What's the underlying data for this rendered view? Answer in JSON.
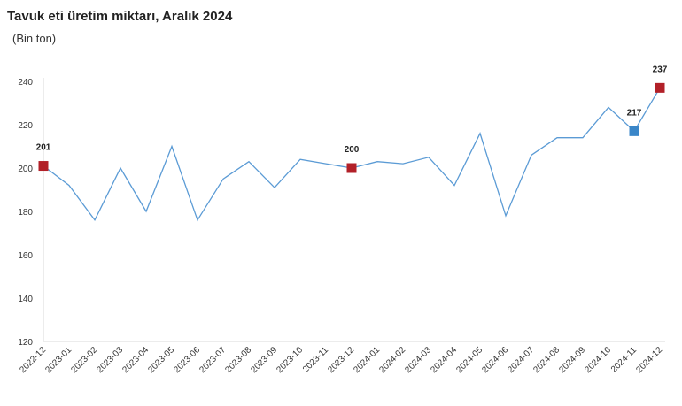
{
  "header": {
    "title": "Tavuk eti üretim miktarı, Aralık 2024",
    "subtitle": "(Bin ton)"
  },
  "chart_data": {
    "type": "line",
    "title": "Tavuk eti üretim miktarı, Aralık 2024",
    "subtitle": "(Bin ton)",
    "xlabel": "",
    "ylabel": "",
    "ylim": [
      120,
      240
    ],
    "yticks": [
      120,
      140,
      160,
      180,
      200,
      220,
      240
    ],
    "grid": false,
    "line_color": "#5b9bd5",
    "categories": [
      "2022-12",
      "2023-01",
      "2023-02",
      "2023-03",
      "2023-04",
      "2023-05",
      "2023-06",
      "2023-07",
      "2023-08",
      "2023-09",
      "2023-10",
      "2023-11",
      "2023-12",
      "2024-01",
      "2024-02",
      "2024-03",
      "2024-04",
      "2024-05",
      "2024-06",
      "2024-07",
      "2024-08",
      "2024-09",
      "2024-10",
      "2024-11",
      "2024-12"
    ],
    "values": [
      201,
      192,
      176,
      200,
      180,
      210,
      176,
      195,
      203,
      191,
      204,
      202,
      200,
      203,
      202,
      205,
      192,
      216,
      178,
      206,
      214,
      214,
      228,
      217,
      237
    ],
    "highlights": [
      {
        "category": "2022-12",
        "value": 201,
        "label": "201",
        "color": "#b22028"
      },
      {
        "category": "2023-12",
        "value": 200,
        "label": "200",
        "color": "#b22028"
      },
      {
        "category": "2024-11",
        "value": 217,
        "label": "217",
        "color": "#3a86c8"
      },
      {
        "category": "2024-12",
        "value": 237,
        "label": "237",
        "color": "#b22028"
      }
    ]
  }
}
